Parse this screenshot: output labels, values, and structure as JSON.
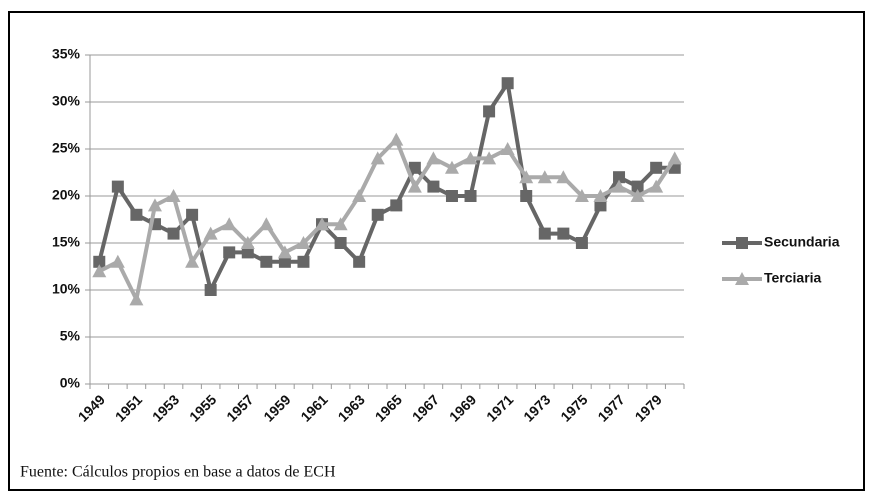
{
  "chart_data": {
    "type": "line",
    "source": "Fuente: Cálculos propios en base a datos de ECH",
    "categories": [
      "1949",
      null,
      "1951",
      null,
      "1953",
      null,
      "1955",
      null,
      "1957",
      null,
      "1959",
      null,
      "1961",
      null,
      "1963",
      null,
      "1965",
      null,
      "1967",
      null,
      "1969",
      null,
      "1971",
      null,
      "1973",
      null,
      "1975",
      null,
      "1977",
      null,
      "1979",
      null
    ],
    "series": [
      {
        "name": "Secundaria",
        "color": "#666666",
        "marker": "square",
        "values": [
          13,
          21,
          18,
          17,
          16,
          18,
          10,
          14,
          14,
          13,
          13,
          13,
          17,
          15,
          13,
          18,
          19,
          23,
          21,
          20,
          20,
          29,
          32,
          20,
          16,
          16,
          15,
          19,
          22,
          21,
          23,
          23
        ]
      },
      {
        "name": "Terciaria",
        "color": "#aaaaaa",
        "marker": "triangle",
        "values": [
          12,
          13,
          9,
          19,
          20,
          13,
          16,
          17,
          15,
          17,
          14,
          15,
          17,
          17,
          20,
          24,
          26,
          21,
          24,
          23,
          24,
          24,
          25,
          22,
          22,
          22,
          20,
          20,
          21,
          20,
          21,
          24
        ]
      }
    ],
    "ylim": [
      0,
      35
    ],
    "yticks": [
      {
        "value": 0,
        "label": "0%"
      },
      {
        "value": 5,
        "label": "5%"
      },
      {
        "value": 10,
        "label": "10%"
      },
      {
        "value": 15,
        "label": "15%"
      },
      {
        "value": 20,
        "label": "20%"
      },
      {
        "value": 25,
        "label": "25%"
      },
      {
        "value": 30,
        "label": "30%"
      },
      {
        "value": 35,
        "label": "35%"
      }
    ],
    "grid": true,
    "legend": "right"
  }
}
